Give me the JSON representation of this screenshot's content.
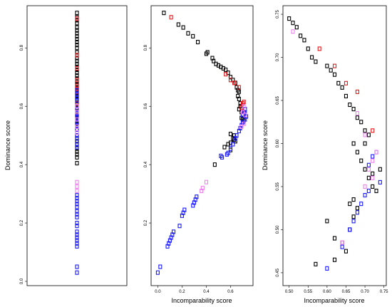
{
  "colors": {
    "black": "#000000",
    "red": "#e41a1c",
    "blue": "#1a1aff",
    "violet": "#ee82ee"
  },
  "chart_data": [
    {
      "type": "scatter",
      "panel": "left",
      "xlabel": "",
      "ylabel": "Dominance score",
      "xlim": [
        0,
        1
      ],
      "ylim": [
        0,
        0.93
      ],
      "xticks": [],
      "yticks": [
        0.0,
        0.2,
        0.4,
        0.6,
        0.8
      ],
      "ytick_labels": [
        "0.0",
        "0.2",
        "0.4",
        "0.6",
        "0.8"
      ],
      "x_constant": 0.5,
      "groups": [
        {
          "color": "black",
          "y": [
            0.92,
            0.905,
            0.895,
            0.885,
            0.87,
            0.86,
            0.85,
            0.84,
            0.83,
            0.82,
            0.81,
            0.8,
            0.785,
            0.775,
            0.765,
            0.755,
            0.745,
            0.735,
            0.725,
            0.715,
            0.705,
            0.695,
            0.685,
            0.675,
            0.665,
            0.645,
            0.635,
            0.625,
            0.605,
            0.595,
            0.58,
            0.57,
            0.55,
            0.54,
            0.53,
            0.52,
            0.5,
            0.49,
            0.48,
            0.47,
            0.455,
            0.445,
            0.435,
            0.425,
            0.405
          ]
        },
        {
          "color": "red",
          "y": [
            0.9,
            0.775,
            0.73,
            0.69,
            0.67,
            0.66,
            0.65,
            0.61
          ]
        },
        {
          "color": "blue",
          "y": [
            0.655,
            0.64,
            0.63,
            0.62,
            0.6,
            0.59,
            0.575,
            0.565,
            0.56,
            0.555,
            0.545,
            0.535,
            0.52,
            0.51,
            0.5,
            0.49,
            0.47,
            0.46,
            0.295,
            0.285,
            0.275,
            0.265,
            0.255,
            0.24,
            0.23,
            0.22,
            0.2,
            0.19,
            0.17,
            0.16,
            0.15,
            0.14,
            0.13,
            0.12,
            0.05,
            0.03
          ]
        },
        {
          "color": "violet",
          "y": [
            0.34,
            0.325,
            0.31,
            0.6,
            0.58,
            0.555,
            0.53,
            0.51
          ]
        }
      ]
    },
    {
      "type": "scatter",
      "panel": "middle",
      "xlabel": "Incomparability score",
      "ylabel": "",
      "xlim": [
        -0.02,
        0.75
      ],
      "ylim": [
        0,
        0.93
      ],
      "xticks": [
        0.0,
        0.2,
        0.4,
        0.6
      ],
      "xtick_labels": [
        "0.0",
        "0.2",
        "0.4",
        "0.6"
      ],
      "yticks": [
        0.2,
        0.4,
        0.6,
        0.8
      ],
      "ytick_labels": [
        "0.2",
        "0.4",
        "0.6",
        "0.8"
      ],
      "groups": [
        {
          "color": "black",
          "points": [
            [
              0.05,
              0.92
            ],
            [
              0.17,
              0.88
            ],
            [
              0.21,
              0.87
            ],
            [
              0.25,
              0.85
            ],
            [
              0.29,
              0.84
            ],
            [
              0.33,
              0.82
            ],
            [
              0.4,
              0.78
            ],
            [
              0.41,
              0.785
            ],
            [
              0.45,
              0.765
            ],
            [
              0.46,
              0.755
            ],
            [
              0.48,
              0.745
            ],
            [
              0.5,
              0.74
            ],
            [
              0.52,
              0.735
            ],
            [
              0.54,
              0.73
            ],
            [
              0.56,
              0.725
            ],
            [
              0.58,
              0.715
            ],
            [
              0.6,
              0.7
            ],
            [
              0.62,
              0.69
            ],
            [
              0.64,
              0.68
            ],
            [
              0.65,
              0.665
            ],
            [
              0.66,
              0.655
            ],
            [
              0.67,
              0.65
            ],
            [
              0.66,
              0.635
            ],
            [
              0.67,
              0.625
            ],
            [
              0.68,
              0.61
            ],
            [
              0.68,
              0.6
            ],
            [
              0.67,
              0.59
            ],
            [
              0.69,
              0.58
            ],
            [
              0.7,
              0.57
            ],
            [
              0.69,
              0.56
            ],
            [
              0.7,
              0.555
            ],
            [
              0.71,
              0.55
            ],
            [
              0.6,
              0.505
            ],
            [
              0.62,
              0.49
            ],
            [
              0.63,
              0.485
            ],
            [
              0.64,
              0.48
            ],
            [
              0.55,
              0.46
            ],
            [
              0.58,
              0.47
            ],
            [
              0.6,
              0.475
            ],
            [
              0.63,
              0.5
            ],
            [
              0.6,
              0.45
            ],
            [
              0.47,
              0.4
            ]
          ]
        },
        {
          "color": "red",
          "points": [
            [
              0.11,
              0.905
            ],
            [
              0.56,
              0.71
            ],
            [
              0.6,
              0.69
            ],
            [
              0.63,
              0.68
            ],
            [
              0.67,
              0.665
            ],
            [
              0.71,
              0.615
            ],
            [
              0.7,
              0.61
            ],
            [
              0.69,
              0.595
            ]
          ]
        },
        {
          "color": "blue",
          "points": [
            [
              0.72,
              0.59
            ],
            [
              0.71,
              0.58
            ],
            [
              0.72,
              0.575
            ],
            [
              0.7,
              0.57
            ],
            [
              0.73,
              0.565
            ],
            [
              0.72,
              0.555
            ],
            [
              0.7,
              0.545
            ],
            [
              0.69,
              0.535
            ],
            [
              0.68,
              0.525
            ],
            [
              0.67,
              0.515
            ],
            [
              0.65,
              0.5
            ],
            [
              0.64,
              0.49
            ],
            [
              0.62,
              0.47
            ],
            [
              0.6,
              0.455
            ],
            [
              0.58,
              0.44
            ],
            [
              0.57,
              0.435
            ],
            [
              0.52,
              0.43
            ],
            [
              0.53,
              0.425
            ],
            [
              0.32,
              0.29
            ],
            [
              0.31,
              0.28
            ],
            [
              0.3,
              0.27
            ],
            [
              0.29,
              0.26
            ],
            [
              0.22,
              0.245
            ],
            [
              0.21,
              0.235
            ],
            [
              0.2,
              0.225
            ],
            [
              0.18,
              0.19
            ],
            [
              0.13,
              0.17
            ],
            [
              0.12,
              0.16
            ],
            [
              0.11,
              0.15
            ],
            [
              0.1,
              0.14
            ],
            [
              0.09,
              0.13
            ],
            [
              0.08,
              0.12
            ],
            [
              0.02,
              0.05
            ],
            [
              0.0,
              0.03
            ]
          ]
        },
        {
          "color": "violet",
          "points": [
            [
              0.4,
              0.34
            ],
            [
              0.37,
              0.32
            ],
            [
              0.36,
              0.31
            ],
            [
              0.71,
              0.6
            ],
            [
              0.7,
              0.58
            ],
            [
              0.72,
              0.57
            ],
            [
              0.71,
              0.54
            ],
            [
              0.69,
              0.53
            ]
          ]
        }
      ]
    },
    {
      "type": "scatter",
      "panel": "right",
      "xlabel": "Incomparability score",
      "ylabel": "Dominance score",
      "xlim": [
        0.495,
        0.745
      ],
      "ylim": [
        0.44,
        0.755
      ],
      "xticks": [
        0.5,
        0.55,
        0.6,
        0.65,
        0.7,
        0.75
      ],
      "xtick_labels": [
        "0.50",
        "0.55",
        "0.60",
        "0.65",
        "0.70",
        "0.75"
      ],
      "yticks": [
        0.45,
        0.5,
        0.55,
        0.6,
        0.65,
        0.7,
        0.75
      ],
      "ytick_labels": [
        "0.45",
        "0.50",
        "0.55",
        "0.60",
        "0.65",
        "0.70",
        "0.75"
      ],
      "groups": [
        {
          "color": "black",
          "points": [
            [
              0.5,
              0.745
            ],
            [
              0.51,
              0.74
            ],
            [
              0.52,
              0.735
            ],
            [
              0.53,
              0.725
            ],
            [
              0.54,
              0.72
            ],
            [
              0.55,
              0.71
            ],
            [
              0.56,
              0.7
            ],
            [
              0.57,
              0.695
            ],
            [
              0.6,
              0.69
            ],
            [
              0.61,
              0.685
            ],
            [
              0.62,
              0.68
            ],
            [
              0.63,
              0.67
            ],
            [
              0.64,
              0.665
            ],
            [
              0.65,
              0.655
            ],
            [
              0.66,
              0.645
            ],
            [
              0.67,
              0.64
            ],
            [
              0.68,
              0.63
            ],
            [
              0.69,
              0.625
            ],
            [
              0.7,
              0.615
            ],
            [
              0.71,
              0.61
            ],
            [
              0.67,
              0.6
            ],
            [
              0.68,
              0.59
            ],
            [
              0.69,
              0.58
            ],
            [
              0.7,
              0.57
            ],
            [
              0.71,
              0.56
            ],
            [
              0.72,
              0.55
            ],
            [
              0.73,
              0.545
            ],
            [
              0.72,
              0.565
            ],
            [
              0.74,
              0.57
            ],
            [
              0.6,
              0.51
            ],
            [
              0.62,
              0.49
            ],
            [
              0.64,
              0.485
            ],
            [
              0.65,
              0.475
            ],
            [
              0.66,
              0.5
            ],
            [
              0.67,
              0.515
            ],
            [
              0.68,
              0.525
            ],
            [
              0.66,
              0.53
            ],
            [
              0.67,
              0.535
            ],
            [
              0.57,
              0.46
            ],
            [
              0.62,
              0.465
            ],
            [
              0.7,
              0.6
            ]
          ]
        },
        {
          "color": "red",
          "points": [
            [
              0.58,
              0.71
            ],
            [
              0.62,
              0.69
            ],
            [
              0.65,
              0.67
            ],
            [
              0.68,
              0.66
            ],
            [
              0.72,
              0.615
            ]
          ]
        },
        {
          "color": "blue",
          "points": [
            [
              0.73,
              0.59
            ],
            [
              0.72,
              0.585
            ],
            [
              0.71,
              0.575
            ],
            [
              0.74,
              0.555
            ],
            [
              0.71,
              0.545
            ],
            [
              0.7,
              0.54
            ],
            [
              0.69,
              0.53
            ],
            [
              0.68,
              0.52
            ],
            [
              0.67,
              0.51
            ],
            [
              0.66,
              0.5
            ],
            [
              0.6,
              0.455
            ],
            [
              0.64,
              0.48
            ]
          ]
        },
        {
          "color": "violet",
          "points": [
            [
              0.51,
              0.73
            ],
            [
              0.68,
              0.635
            ],
            [
              0.7,
              0.61
            ],
            [
              0.73,
              0.59
            ],
            [
              0.72,
              0.58
            ],
            [
              0.71,
              0.57
            ],
            [
              0.72,
              0.56
            ],
            [
              0.7,
              0.55
            ],
            [
              0.64,
              0.485
            ]
          ]
        }
      ]
    }
  ]
}
